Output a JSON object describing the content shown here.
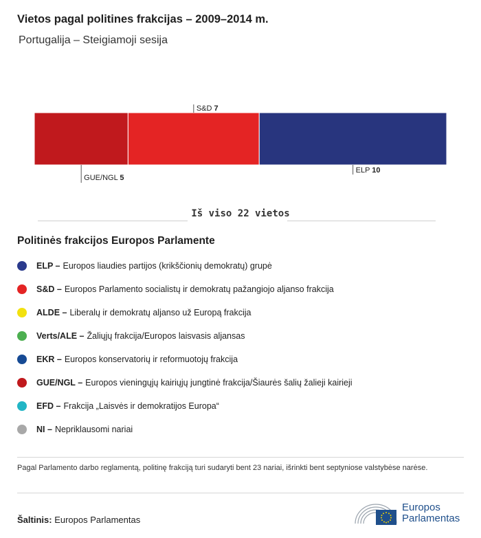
{
  "title": "Vietos pagal politines frakcijas – 2009–2014 m.",
  "subtitle": "Portugalija – Steigiamoji sesija",
  "chart_data": {
    "type": "bar",
    "orientation": "horizontal-stacked",
    "total": 22,
    "segments": [
      {
        "name": "GUE/NGL",
        "value": 5,
        "color": "#c0191d",
        "label_side": "bottom"
      },
      {
        "name": "S&D",
        "value": 7,
        "color": "#e42424",
        "label_side": "top"
      },
      {
        "name": "ELP",
        "value": 10,
        "color": "#28357e",
        "label_side": "bottom"
      }
    ]
  },
  "total_label": "Iš viso 22 vietos",
  "legend_title": "Politinės frakcijos Europos Parlamente",
  "legend": [
    {
      "abbr": "ELP –",
      "desc": "Europos liaudies partijos (krikščionių demokratų) grupė",
      "color": "#2a3a8c"
    },
    {
      "abbr": "S&D –",
      "desc": "Europos Parlamento socialistų ir demokratų pažangiojo aljanso frakcija",
      "color": "#e42424"
    },
    {
      "abbr": "ALDE –",
      "desc": "Liberalų ir demokratų aljanso už Europą frakcija",
      "color": "#f2e10f"
    },
    {
      "abbr": "Verts/ALE –",
      "desc": "Žaliųjų frakcija/Europos laisvasis aljansas",
      "color": "#4caf50"
    },
    {
      "abbr": "EKR –",
      "desc": "Europos konservatorių ir reformuotojų frakcija",
      "color": "#164a94"
    },
    {
      "abbr": "GUE/NGL –",
      "desc": "Europos vieningųjų kairiųjų jungtinė frakcija/Šiaurės šalių žalieji kairieji",
      "color": "#c0191d"
    },
    {
      "abbr": "EFD –",
      "desc": "Frakcija „Laisvės ir demokratijos Europa“",
      "color": "#22b5c5"
    },
    {
      "abbr": "NI –",
      "desc": "Nepriklausomi nariai",
      "color": "#a8a8a8"
    }
  ],
  "note": "Pagal Parlamento darbo reglamentą, politinę frakciją turi sudaryti bent 23 nariai, išrinkti bent septyniose valstybėse narėse.",
  "source_label": "Šaltinis:",
  "source_value": "Europos Parlamentas",
  "logo_line1": "Europos",
  "logo_line2": "Parlamentas"
}
